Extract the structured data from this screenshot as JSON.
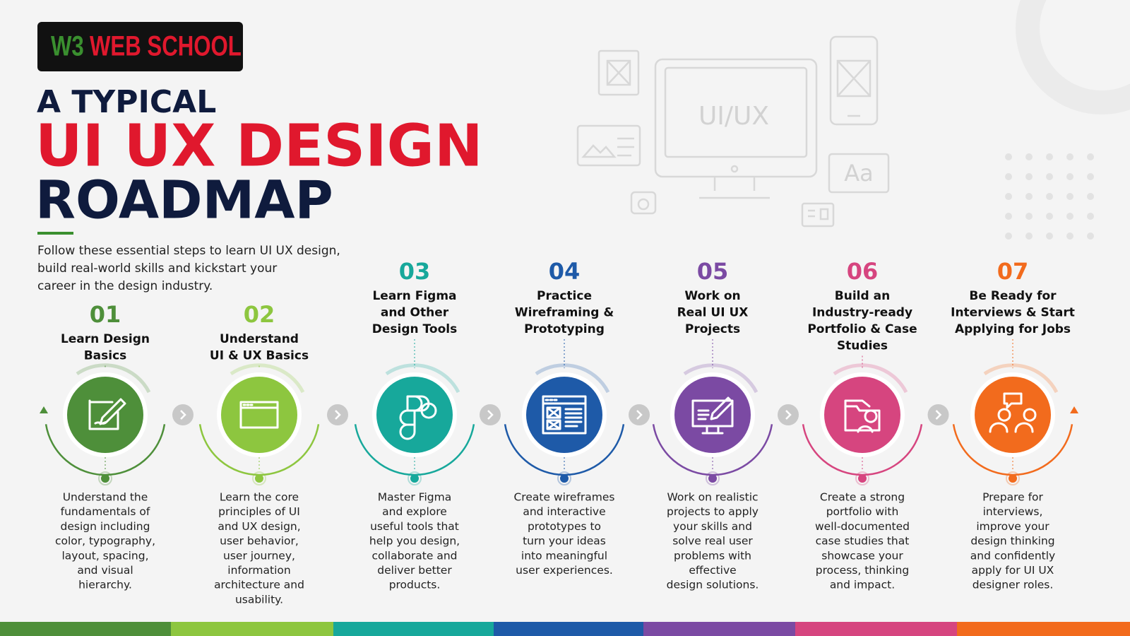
{
  "logo": {
    "prefix": "W3",
    "name": "WEB SCHOOL"
  },
  "header": {
    "kicker": "A TYPICAL",
    "title": "UI UX DESIGN",
    "subtitle": "ROADMAP",
    "description_lines": [
      "Follow these essential steps to learn UI UX design,",
      "build real-world skills and kickstart your",
      "career in the design industry."
    ]
  },
  "illustration": {
    "screen_text": "UI/UX",
    "font_sample": "Aa"
  },
  "steps": [
    {
      "number": "01",
      "color": "#4e8f3a",
      "title_lines": [
        "Learn Design",
        "Basics"
      ],
      "description_lines": [
        "Understand the",
        "fundamentals of",
        "design including",
        "color, typography,",
        "layout, spacing,",
        "and visual",
        "hierarchy."
      ]
    },
    {
      "number": "02",
      "color": "#8dc63f",
      "title_lines": [
        "Understand",
        "UI & UX Basics"
      ],
      "description_lines": [
        "Learn the core",
        "principles of UI",
        "and UX design,",
        "user behavior,",
        "user journey,",
        "information",
        "architecture and",
        "usability."
      ]
    },
    {
      "number": "03",
      "color": "#17a89b",
      "title_lines": [
        "Learn Figma",
        "and Other",
        "Design Tools"
      ],
      "description_lines": [
        "Master Figma",
        "and explore",
        "useful tools that",
        "help you design,",
        "collaborate and",
        "deliver better",
        "products."
      ]
    },
    {
      "number": "04",
      "color": "#1e5aa8",
      "title_lines": [
        "Practice",
        "Wireframing &",
        "Prototyping"
      ],
      "description_lines": [
        "Create wireframes",
        "and interactive",
        "prototypes to",
        "turn your ideas",
        "into meaningful",
        "user experiences."
      ]
    },
    {
      "number": "05",
      "color": "#7b4aa3",
      "title_lines": [
        "Work on",
        "Real UI UX",
        "Projects"
      ],
      "description_lines": [
        "Work on realistic",
        "projects to apply",
        "your skills and",
        "solve real user",
        "problems with",
        "effective",
        "design solutions."
      ]
    },
    {
      "number": "06",
      "color": "#d6457f",
      "title_lines": [
        "Build an",
        "Industry-ready",
        "Portfolio & Case",
        "Studies"
      ],
      "description_lines": [
        "Create a strong",
        "portfolio with",
        "well-documented",
        "case studies that",
        "showcase your",
        "process, thinking",
        "and impact."
      ]
    },
    {
      "number": "07",
      "color": "#f26b1d",
      "title_lines": [
        "Be Ready for",
        "Interviews & Start",
        "Applying for Jobs"
      ],
      "description_lines": [
        "Prepare for",
        "interviews,",
        "improve your",
        "design thinking",
        "and confidently",
        "apply for UI UX",
        "designer roles."
      ]
    }
  ]
}
